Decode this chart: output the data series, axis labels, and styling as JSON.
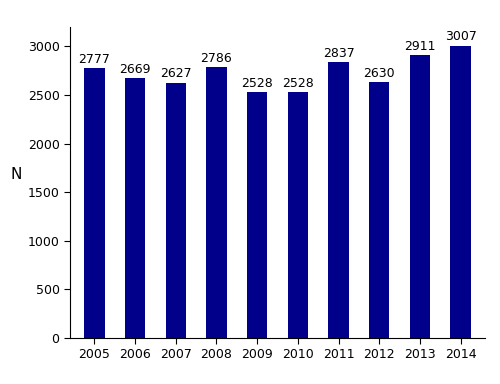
{
  "years": [
    "2005",
    "2006",
    "2007",
    "2008",
    "2009",
    "2010",
    "2011",
    "2012",
    "2013",
    "2014"
  ],
  "values": [
    2777,
    2669,
    2627,
    2786,
    2528,
    2528,
    2837,
    2630,
    2911,
    3007
  ],
  "bar_color": "#00008B",
  "ylabel": "N",
  "ylim": [
    0,
    3200
  ],
  "yticks": [
    0,
    500,
    1000,
    1500,
    2000,
    2500,
    3000
  ],
  "annotation_fontsize": 9,
  "label_fontsize": 11,
  "tick_fontsize": 9,
  "bar_width": 0.5,
  "background_color": "#ffffff"
}
